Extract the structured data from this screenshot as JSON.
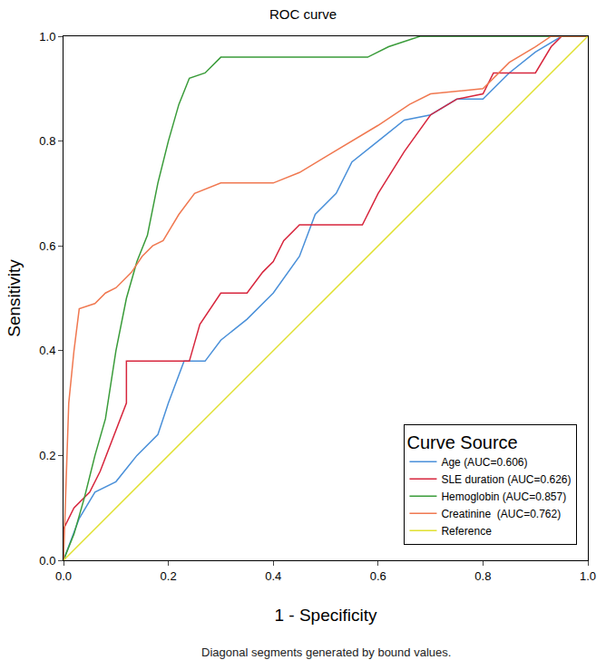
{
  "chart_data": {
    "type": "line",
    "title": "ROC curve",
    "x_label": "1 - Specificity",
    "y_label": "Sensitivity",
    "legend_title": "Curve Source",
    "legend": "lower right",
    "grid": false,
    "annotations": [
      "Diagonal segments generated by bound values."
    ],
    "xlim": [
      0,
      1
    ],
    "ylim": [
      0,
      1
    ],
    "xticks": [
      {
        "value": 0,
        "label": "0.0"
      },
      {
        "value": 0.2,
        "label": "0.2"
      },
      {
        "value": 0.4,
        "label": "0.4"
      },
      {
        "value": 0.6,
        "label": "0.6"
      },
      {
        "value": 0.8,
        "label": "0.8"
      },
      {
        "value": 1,
        "label": "1.0"
      }
    ],
    "yticks": [
      {
        "value": 0,
        "label": "0.0"
      },
      {
        "value": 0.2,
        "label": "0.2"
      },
      {
        "value": 0.4,
        "label": "0.4"
      },
      {
        "value": 0.6,
        "label": "0.6"
      },
      {
        "value": 0.8,
        "label": "0.8"
      },
      {
        "value": 1,
        "label": "1.0"
      }
    ],
    "series": [
      {
        "name": "Age (AUC=0.606)",
        "color": "#4a90d9",
        "x": [
          0,
          0.03,
          0.06,
          0.1,
          0.14,
          0.18,
          0.2,
          0.23,
          0.27,
          0.3,
          0.35,
          0.4,
          0.45,
          0.48,
          0.52,
          0.55,
          0.6,
          0.65,
          0.7,
          0.75,
          0.8,
          0.85,
          0.9,
          0.95,
          1
        ],
        "values": [
          0,
          0.08,
          0.13,
          0.15,
          0.2,
          0.24,
          0.3,
          0.38,
          0.38,
          0.42,
          0.46,
          0.51,
          0.58,
          0.66,
          0.7,
          0.76,
          0.8,
          0.84,
          0.85,
          0.88,
          0.88,
          0.93,
          0.97,
          1,
          1
        ]
      },
      {
        "name": "SLE duration (AUC=0.626)",
        "color": "#d7263d",
        "x": [
          0,
          0,
          0.02,
          0.05,
          0.07,
          0.1,
          0.12,
          0.12,
          0.24,
          0.26,
          0.3,
          0.35,
          0.38,
          0.4,
          0.42,
          0.45,
          0.57,
          0.6,
          0.65,
          0.7,
          0.75,
          0.8,
          0.82,
          0.9,
          0.93,
          0.95,
          1
        ],
        "values": [
          0,
          0.06,
          0.1,
          0.13,
          0.17,
          0.25,
          0.3,
          0.38,
          0.38,
          0.45,
          0.51,
          0.51,
          0.55,
          0.57,
          0.61,
          0.64,
          0.64,
          0.7,
          0.78,
          0.85,
          0.88,
          0.89,
          0.93,
          0.93,
          0.98,
          1,
          1
        ]
      },
      {
        "name": "Hemoglobin (AUC=0.857)",
        "color": "#3a9c3a",
        "x": [
          0,
          0.02,
          0.04,
          0.06,
          0.08,
          0.1,
          0.12,
          0.14,
          0.16,
          0.18,
          0.2,
          0.22,
          0.24,
          0.27,
          0.3,
          0.58,
          0.62,
          0.68,
          1
        ],
        "values": [
          0,
          0.05,
          0.12,
          0.2,
          0.27,
          0.4,
          0.5,
          0.57,
          0.62,
          0.72,
          0.8,
          0.87,
          0.92,
          0.93,
          0.96,
          0.96,
          0.98,
          1,
          1
        ]
      },
      {
        "name": "Creatinine  (AUC=0.762)",
        "color": "#f07850",
        "x": [
          0,
          0.005,
          0.01,
          0.02,
          0.03,
          0.06,
          0.08,
          0.1,
          0.13,
          0.15,
          0.17,
          0.19,
          0.22,
          0.25,
          0.3,
          0.4,
          0.45,
          0.5,
          0.55,
          0.6,
          0.66,
          0.7,
          0.8,
          0.85,
          0.9,
          0.93,
          1
        ],
        "values": [
          0,
          0.15,
          0.3,
          0.4,
          0.48,
          0.49,
          0.51,
          0.52,
          0.55,
          0.58,
          0.6,
          0.61,
          0.66,
          0.7,
          0.72,
          0.72,
          0.74,
          0.77,
          0.8,
          0.83,
          0.87,
          0.89,
          0.9,
          0.95,
          0.98,
          1,
          1
        ]
      },
      {
        "name": "Reference",
        "color": "#e0e030",
        "x": [
          0,
          1
        ],
        "values": [
          0,
          1
        ]
      }
    ]
  }
}
